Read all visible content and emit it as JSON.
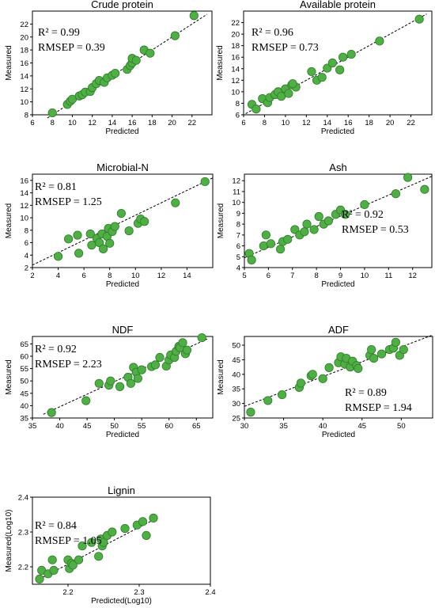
{
  "chart_data": [
    {
      "type": "scatter",
      "title": "Crude protein",
      "xlabel": "Predicted",
      "ylabel": "Measured",
      "xlim": [
        6,
        24
      ],
      "ylim": [
        8,
        24
      ],
      "xticks": [
        6,
        8,
        10,
        12,
        14,
        16,
        18,
        20,
        22
      ],
      "yticks": [
        8,
        10,
        12,
        14,
        16,
        18,
        20,
        22
      ],
      "stats": {
        "r2": "R² = 0.99",
        "rmsep": "RMSEP = 0.39"
      },
      "fit_line": [
        [
          7.5,
          7.5
        ],
        [
          23.5,
          23.5
        ]
      ],
      "points": [
        [
          8.0,
          8.3
        ],
        [
          9.5,
          9.6
        ],
        [
          9.8,
          10.1
        ],
        [
          10.0,
          10.4
        ],
        [
          10.7,
          10.9
        ],
        [
          11.0,
          11.1
        ],
        [
          11.3,
          11.5
        ],
        [
          11.8,
          11.6
        ],
        [
          12.0,
          12.2
        ],
        [
          12.4,
          12.8
        ],
        [
          12.7,
          13.3
        ],
        [
          13.2,
          13.0
        ],
        [
          13.5,
          13.7
        ],
        [
          14.0,
          14.1
        ],
        [
          14.3,
          14.4
        ],
        [
          15.5,
          15.0
        ],
        [
          15.8,
          15.6
        ],
        [
          16.0,
          16.0
        ],
        [
          16.0,
          16.7
        ],
        [
          16.4,
          16.4
        ],
        [
          17.2,
          18.0
        ],
        [
          17.8,
          17.5
        ],
        [
          20.3,
          20.2
        ],
        [
          22.2,
          23.3
        ]
      ]
    },
    {
      "type": "scatter",
      "title": "Available protein",
      "xlabel": "Predicted",
      "ylabel": "Measured",
      "xlim": [
        6,
        24
      ],
      "ylim": [
        6,
        24
      ],
      "xticks": [
        6,
        8,
        10,
        12,
        14,
        16,
        18,
        20,
        22
      ],
      "yticks": [
        6,
        8,
        10,
        12,
        14,
        16,
        18,
        20,
        22
      ],
      "stats": {
        "r2": "R² = 0.96",
        "rmsep": "RMSEP = 0.73"
      },
      "fit_line": [
        [
          6.2,
          6.2
        ],
        [
          23.5,
          23.5
        ]
      ],
      "points": [
        [
          6.8,
          7.8
        ],
        [
          7.2,
          7.0
        ],
        [
          7.8,
          8.8
        ],
        [
          8.3,
          8.1
        ],
        [
          8.5,
          9.0
        ],
        [
          9.0,
          9.5
        ],
        [
          9.3,
          10.0
        ],
        [
          9.6,
          9.2
        ],
        [
          10.0,
          10.5
        ],
        [
          10.3,
          9.7
        ],
        [
          10.6,
          11.2
        ],
        [
          11.0,
          10.8
        ],
        [
          10.7,
          11.4
        ],
        [
          12.5,
          13.5
        ],
        [
          13.0,
          12.0
        ],
        [
          13.5,
          12.5
        ],
        [
          14.0,
          14.1
        ],
        [
          14.5,
          15.0
        ],
        [
          15.2,
          13.8
        ],
        [
          15.5,
          16.0
        ],
        [
          16.3,
          16.5
        ],
        [
          19.0,
          18.8
        ],
        [
          22.8,
          22.6
        ]
      ]
    },
    {
      "type": "scatter",
      "title": "Microbial-N",
      "xlabel": "Predicted",
      "ylabel": "Measured",
      "xlim": [
        2,
        16
      ],
      "ylim": [
        2,
        17
      ],
      "xticks": [
        2,
        4,
        6,
        8,
        10,
        12,
        14
      ],
      "yticks": [
        2,
        4,
        6,
        8,
        10,
        12,
        14,
        16
      ],
      "stats": {
        "r2": "R² = 0.81",
        "rmsep": "RMSEP = 1.25"
      },
      "fit_line": [
        [
          2,
          2.4
        ],
        [
          16,
          16.4
        ]
      ],
      "points": [
        [
          4.0,
          3.8
        ],
        [
          4.8,
          6.6
        ],
        [
          5.5,
          7.2
        ],
        [
          5.6,
          4.3
        ],
        [
          6.5,
          7.4
        ],
        [
          6.6,
          5.6
        ],
        [
          7.0,
          6.7
        ],
        [
          7.2,
          6.0
        ],
        [
          7.4,
          7.4
        ],
        [
          7.5,
          5.0
        ],
        [
          7.8,
          7.0
        ],
        [
          7.9,
          8.3
        ],
        [
          8.0,
          5.9
        ],
        [
          8.2,
          7.8
        ],
        [
          8.4,
          8.6
        ],
        [
          8.9,
          10.7
        ],
        [
          9.5,
          7.9
        ],
        [
          10.2,
          9.1
        ],
        [
          10.4,
          9.8
        ],
        [
          10.7,
          9.4
        ],
        [
          13.1,
          12.4
        ],
        [
          15.4,
          15.8
        ]
      ]
    },
    {
      "type": "scatter",
      "title": "Ash",
      "xlabel": "Predicted",
      "ylabel": "Measured",
      "xlim": [
        5,
        12.8
      ],
      "ylim": [
        4,
        12.6
      ],
      "xticks": [
        5,
        6,
        7,
        8,
        9,
        10,
        11,
        12
      ],
      "yticks": [
        4,
        5,
        6,
        7,
        8,
        9,
        10,
        11,
        12
      ],
      "stats": {
        "r2": "R² = 0.92",
        "rmsep": "RMSEP = 0.53"
      },
      "fit_line": [
        [
          5,
          4.9
        ],
        [
          12.8,
          12.4
        ]
      ],
      "points": [
        [
          5.2,
          5.3
        ],
        [
          5.3,
          4.7
        ],
        [
          5.8,
          6.0
        ],
        [
          5.9,
          7.0
        ],
        [
          6.1,
          6.2
        ],
        [
          6.5,
          5.7
        ],
        [
          6.6,
          6.4
        ],
        [
          6.8,
          6.6
        ],
        [
          7.1,
          7.5
        ],
        [
          7.3,
          7.0
        ],
        [
          7.5,
          7.3
        ],
        [
          7.6,
          8.0
        ],
        [
          7.9,
          7.5
        ],
        [
          8.1,
          8.7
        ],
        [
          8.3,
          8.0
        ],
        [
          8.5,
          8.3
        ],
        [
          8.8,
          8.9
        ],
        [
          9.0,
          9.3
        ],
        [
          9.2,
          8.9
        ],
        [
          10.0,
          9.8
        ],
        [
          11.3,
          10.8
        ],
        [
          11.8,
          12.3
        ],
        [
          12.5,
          11.2
        ]
      ]
    },
    {
      "type": "scatter",
      "title": "NDF",
      "xlabel": "Predicted",
      "ylabel": "Measured",
      "xlim": [
        35,
        68
      ],
      "ylim": [
        35,
        68
      ],
      "xticks": [
        35,
        40,
        45,
        50,
        55,
        60,
        65
      ],
      "yticks": [
        35,
        40,
        45,
        50,
        55,
        60,
        65
      ],
      "stats": {
        "r2": "R² = 0.92",
        "rmsep": "RMSEP = 2.23"
      },
      "fit_line": [
        [
          37,
          36.5
        ],
        [
          67,
          67
        ]
      ],
      "points": [
        [
          38.5,
          37.2
        ],
        [
          44.8,
          42.0
        ],
        [
          47.2,
          49.0
        ],
        [
          49.0,
          48.3
        ],
        [
          49.3,
          50.0
        ],
        [
          51.0,
          47.7
        ],
        [
          52.5,
          51.5
        ],
        [
          53.0,
          49.0
        ],
        [
          53.5,
          55.5
        ],
        [
          54.0,
          53.5
        ],
        [
          54.3,
          51.0
        ],
        [
          55.0,
          54.5
        ],
        [
          56.8,
          55.8
        ],
        [
          57.5,
          56.5
        ],
        [
          58.3,
          59.5
        ],
        [
          59.5,
          56.0
        ],
        [
          60.0,
          58.5
        ],
        [
          60.3,
          60.5
        ],
        [
          61.0,
          59.5
        ],
        [
          61.3,
          62.0
        ],
        [
          61.8,
          64.0
        ],
        [
          62.0,
          63.5
        ],
        [
          62.5,
          65.5
        ],
        [
          63.0,
          61.0
        ],
        [
          63.3,
          62.5
        ],
        [
          66.0,
          67.5
        ]
      ]
    },
    {
      "type": "scatter",
      "title": "ADF",
      "xlabel": "Predicted",
      "ylabel": "Measured",
      "xlim": [
        30,
        54
      ],
      "ylim": [
        25,
        53
      ],
      "xticks": [
        30,
        35,
        40,
        45,
        50
      ],
      "yticks": [
        25,
        30,
        35,
        40,
        45,
        50
      ],
      "stats": {
        "r2": "R² = 0.89",
        "rmsep": "RMSEP = 1.94"
      },
      "fit_line": [
        [
          30,
          29
        ],
        [
          54,
          53.5
        ]
      ],
      "points": [
        [
          30.8,
          27.0
        ],
        [
          33.0,
          31.0
        ],
        [
          34.8,
          33.0
        ],
        [
          37.0,
          35.5
        ],
        [
          37.2,
          37.0
        ],
        [
          38.5,
          39.5
        ],
        [
          38.7,
          40.0
        ],
        [
          40.0,
          38.5
        ],
        [
          40.8,
          42.3
        ],
        [
          42.0,
          44.0
        ],
        [
          42.3,
          46.0
        ],
        [
          42.8,
          43.5
        ],
        [
          43.0,
          45.5
        ],
        [
          43.5,
          42.5
        ],
        [
          43.8,
          44.5
        ],
        [
          44.3,
          43.0
        ],
        [
          44.5,
          42.0
        ],
        [
          46.0,
          46.5
        ],
        [
          46.2,
          48.5
        ],
        [
          46.5,
          45.5
        ],
        [
          47.5,
          47.0
        ],
        [
          48.5,
          48.5
        ],
        [
          49.0,
          49.0
        ],
        [
          49.3,
          51.0
        ],
        [
          49.8,
          46.5
        ],
        [
          50.3,
          48.5
        ]
      ]
    },
    {
      "type": "scatter",
      "title": "Lignin",
      "xlabel": "Predicted(Log10)",
      "ylabel": "Measured(Log10)",
      "xlim": [
        2.15,
        2.4
      ],
      "ylim": [
        2.15,
        2.4
      ],
      "xticks": [
        2.2,
        2.3,
        2.4
      ],
      "yticks": [
        2.2,
        2.3,
        2.4
      ],
      "stats": {
        "r2": "R² = 0.84",
        "rmsep": "RMSEP = 1.05"
      },
      "fit_line": [
        [
          2.155,
          2.16
        ],
        [
          2.325,
          2.34
        ]
      ],
      "points": [
        [
          2.16,
          2.165
        ],
        [
          2.163,
          2.19
        ],
        [
          2.172,
          2.18
        ],
        [
          2.178,
          2.22
        ],
        [
          2.18,
          2.19
        ],
        [
          2.2,
          2.22
        ],
        [
          2.202,
          2.195
        ],
        [
          2.205,
          2.21
        ],
        [
          2.207,
          2.205
        ],
        [
          2.215,
          2.22
        ],
        [
          2.22,
          2.26
        ],
        [
          2.233,
          2.27
        ],
        [
          2.243,
          2.23
        ],
        [
          2.246,
          2.28
        ],
        [
          2.248,
          2.26
        ],
        [
          2.25,
          2.27
        ],
        [
          2.255,
          2.29
        ],
        [
          2.262,
          2.3
        ],
        [
          2.28,
          2.31
        ],
        [
          2.297,
          2.32
        ],
        [
          2.305,
          2.33
        ],
        [
          2.31,
          2.29
        ],
        [
          2.32,
          2.34
        ]
      ]
    }
  ]
}
